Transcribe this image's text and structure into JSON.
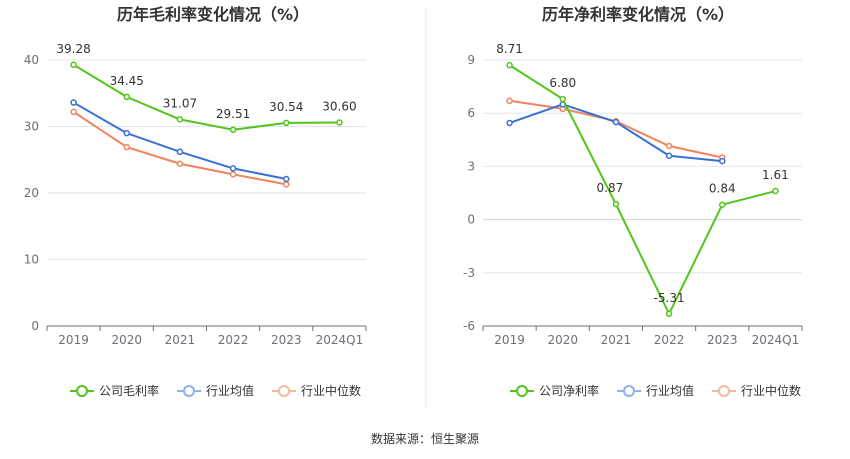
{
  "source": "数据来源：恒生聚源",
  "chart_data": [
    {
      "type": "line",
      "title": "历年毛利率变化情况（%）",
      "categories": [
        "2019",
        "2020",
        "2021",
        "2022",
        "2023",
        "2024Q1"
      ],
      "ylim": [
        0,
        40
      ],
      "yticks": [
        "0",
        "10",
        "20",
        "30",
        "40"
      ],
      "series": [
        {
          "name": "公司毛利率",
          "color": "#52c41a",
          "values": [
            39.28,
            34.45,
            31.07,
            29.51,
            30.54,
            30.6
          ],
          "labels": [
            "39.28",
            "34.45",
            "31.07",
            "29.51",
            "30.54",
            "30.60"
          ]
        },
        {
          "name": "行业均值",
          "color": "#3a6fd8",
          "values": [
            33.6,
            29.0,
            26.2,
            23.7,
            22.1,
            null
          ]
        },
        {
          "name": "行业中位数",
          "color": "#f0845c",
          "values": [
            32.2,
            26.9,
            24.4,
            22.8,
            21.3,
            null
          ]
        }
      ],
      "grid": true,
      "legend": "bottom"
    },
    {
      "type": "line",
      "title": "历年净利率变化情况（%）",
      "categories": [
        "2019",
        "2020",
        "2021",
        "2022",
        "2023",
        "2024Q1"
      ],
      "ylim": [
        -6,
        9
      ],
      "yticks": [
        "-6",
        "-3",
        "0",
        "3",
        "6",
        "9"
      ],
      "series": [
        {
          "name": "公司净利率",
          "color": "#52c41a",
          "values": [
            8.71,
            6.8,
            0.87,
            -5.31,
            0.84,
            1.61
          ],
          "labels": [
            "8.71",
            "6.80",
            "0.87",
            "-5.31",
            "0.84",
            "1.61"
          ]
        },
        {
          "name": "行业均值",
          "color": "#3a6fd8",
          "values": [
            5.45,
            6.5,
            5.5,
            3.6,
            3.3,
            null
          ]
        },
        {
          "name": "行业中位数",
          "color": "#f0845c",
          "values": [
            6.7,
            6.25,
            5.55,
            4.15,
            3.5,
            null
          ]
        }
      ],
      "grid": true,
      "legend": "bottom"
    }
  ]
}
